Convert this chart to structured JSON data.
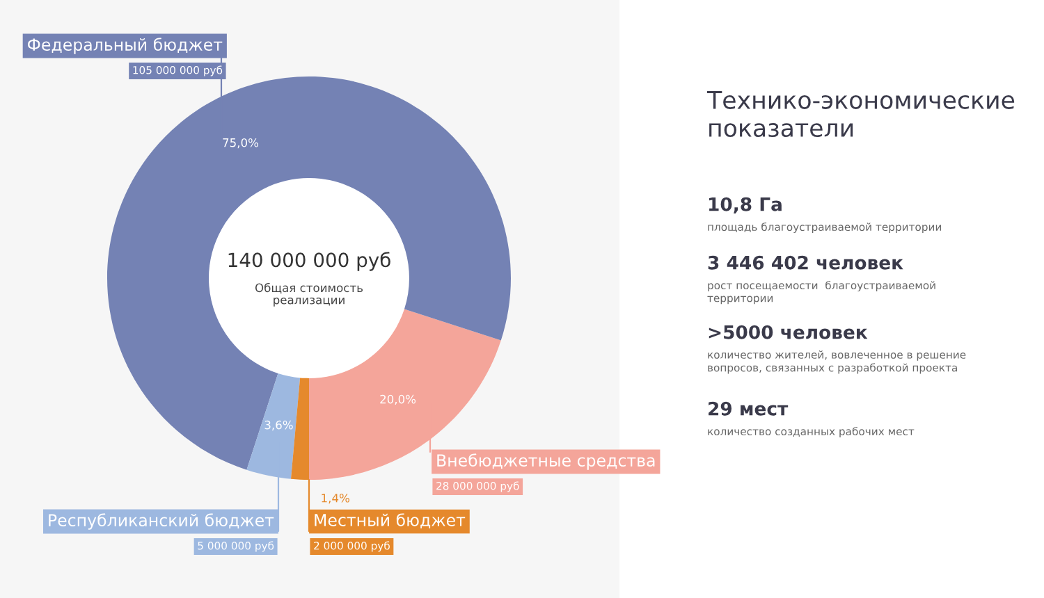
{
  "chart_data": [
    {
      "type": "donut",
      "categories": [
        "Внебюджетные средства",
        "Федеральный бюджет",
        "Республиканский бюджет",
        "Местный бюджет"
      ],
      "values": [
        28000000,
        105000000,
        5000000,
        2000000
      ],
      "colors": [
        "#f4a59a",
        "#7482b4",
        "#9db8e0",
        "#e5892c"
      ],
      "value_labels": [
        "28 000 000 руб",
        "105 000 000 руб",
        "5 000 000 руб",
        "2 000 000 руб"
      ],
      "legend": false,
      "annotations": [
        "140 000 000 руб",
        "Общая стоимость\nреализации",
        {
          "text": "20,0%",
          "x": "Внебюджетные средства"
        },
        {
          "text": "75,0%",
          "x": "Федеральный бюджет"
        },
        {
          "text": "3,6%",
          "x": "Республиканский бюджет"
        },
        {
          "text": "1,4%",
          "x": "Местный бюджет"
        }
      ]
    },
    {
      "type": "other",
      "title": "Технико-экономические\nпоказатели",
      "annotations": [
        "10,8 Га",
        "площадь благоустраиваемой территории",
        "3 446 402 человек",
        "рост посещаемости  благоустраиваемой\nтерритории",
        ">5000 человек",
        "количество жителей, вовлеченное в решение\nвопросов, связанных с разработкой проекта",
        "29 мест",
        "количество созданных рабочих мест"
      ]
    }
  ]
}
